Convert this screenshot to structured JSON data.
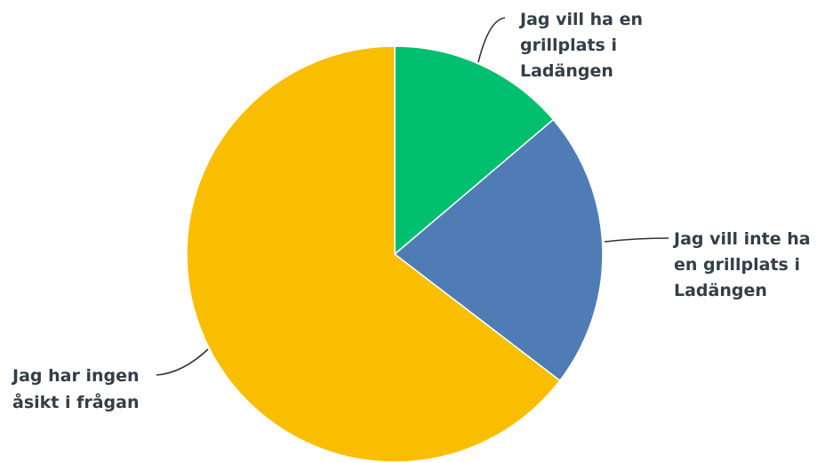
{
  "chart_data": {
    "type": "pie",
    "slices": [
      {
        "label_lines": [
          "Jag vill ha en",
          "grillplats i",
          "Ladängen"
        ],
        "value": 13.8,
        "color": "#00bf6f"
      },
      {
        "label_lines": [
          "Jag vill inte ha",
          "en grillplats i",
          "Ladängen"
        ],
        "value": 21.6,
        "color": "#507cb6"
      },
      {
        "label_lines": [
          "Jag har ingen",
          "åsikt i frågan"
        ],
        "value": 64.6,
        "color": "#f9be00"
      }
    ],
    "start_angle_deg": 0,
    "direction": "clockwise"
  }
}
